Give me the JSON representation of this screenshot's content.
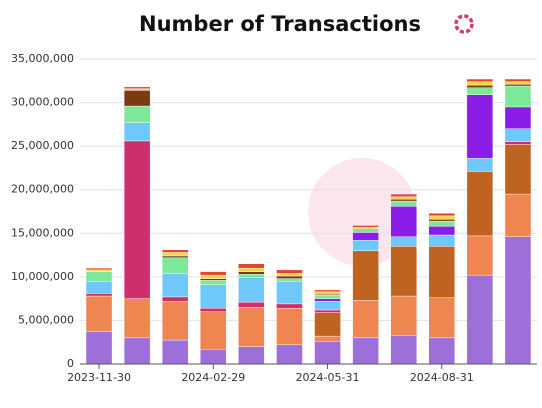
{
  "chart_data": {
    "type": "stacked_bar",
    "title": "Number of Transactions",
    "categories": [
      "2023-11-30",
      null,
      null,
      "2024-02-29",
      null,
      null,
      "2024-05-31",
      null,
      null,
      "2024-08-31",
      null,
      null
    ],
    "series": [
      {
        "color": "#9d6fd8",
        "values": [
          3700000,
          3000000,
          2750000,
          1700000,
          2000000,
          2200000,
          2600000,
          3000000,
          3300000,
          3000000,
          10200000,
          14600000
        ]
      },
      {
        "color": "#ef8550",
        "values": [
          4100000,
          4500000,
          4450000,
          4300000,
          4500000,
          4200000,
          600000,
          4300000,
          4500000,
          4600000,
          4500000,
          4900000
        ]
      },
      {
        "color": "#bf6420",
        "values": [
          0,
          0,
          0,
          0,
          0,
          0,
          2700000,
          5700000,
          5700000,
          5900000,
          7400000,
          5700000
        ]
      },
      {
        "color": "#cf2e6e",
        "values": [
          300000,
          18100000,
          500000,
          400000,
          600000,
          500000,
          300000,
          0,
          0,
          0,
          0,
          300000
        ]
      },
      {
        "color": "#6ec8fb",
        "values": [
          1400000,
          2100000,
          2700000,
          2700000,
          2800000,
          2600000,
          1000000,
          1200000,
          1100000,
          1300000,
          1500000,
          1500000
        ]
      },
      {
        "color": "#8a1de6",
        "values": [
          0,
          0,
          0,
          0,
          0,
          0,
          300000,
          900000,
          3500000,
          1000000,
          7300000,
          2500000
        ]
      },
      {
        "color": "#7ee89a",
        "values": [
          1100000,
          1900000,
          1800000,
          500000,
          400000,
          300000,
          400000,
          300000,
          600000,
          600000,
          800000,
          2400000
        ]
      },
      {
        "color": "#7a3a12",
        "values": [
          0,
          1800000,
          200000,
          200000,
          300000,
          300000,
          100000,
          100000,
          200000,
          200000,
          300000,
          200000
        ]
      },
      {
        "color": "#f3d44a",
        "values": [
          200000,
          200000,
          400000,
          400000,
          400000,
          300000,
          300000,
          200000,
          300000,
          400000,
          400000,
          300000
        ]
      },
      {
        "color": "#e0452f",
        "values": [
          200000,
          200000,
          300000,
          400000,
          500000,
          400000,
          200000,
          200000,
          300000,
          300000,
          300000,
          300000
        ]
      }
    ],
    "ylim": [
      0,
      35000000
    ],
    "yticks": [
      0,
      {
        "value": 5000000,
        "label": "5,000,000"
      },
      {
        "value": 10000000,
        "label": "10,000,000"
      },
      {
        "value": 15000000,
        "label": "15,000,000"
      },
      {
        "value": 20000000,
        "label": "20,000,000"
      },
      {
        "value": 25000000,
        "label": "25,000,000"
      },
      {
        "value": 30000000,
        "label": "30,000,000"
      },
      {
        "value": 35000000,
        "label": "35,000,000"
      }
    ],
    "grid": true
  }
}
